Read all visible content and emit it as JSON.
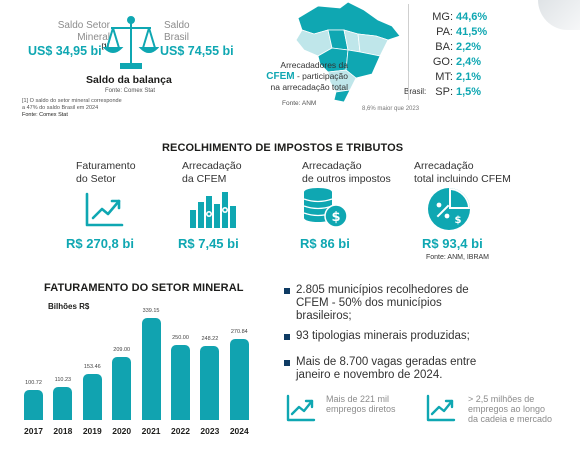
{
  "balance": {
    "left_label_1": "Saldo Setor",
    "left_label_2": "Mineral",
    "left_value": "US$ 34,95 bi",
    "left_note_mark": "[1]",
    "right_label_1": "Saldo",
    "right_label_2": "Brasil",
    "right_value": "US$ 74,55 bi",
    "title": "Saldo da balança",
    "source": "Fonte: Comex Stat",
    "footnote_1": "[1] O saldo do setor mineral corresponde",
    "footnote_2": "a 47% do saldo Brasil em 2024",
    "footnote_source": "Fonte: Comex Stat",
    "icon": "balance-scale-icon"
  },
  "cfem_map": {
    "caption_1": "Arrecadadores da",
    "caption_bold": "CFEM",
    "caption_2": " - participação",
    "caption_3": "na arrecadação total",
    "source": "Fonte: ANM",
    "brasil_label": "Brasil:",
    "brasil_note": "8,6% maior que 2023",
    "states": [
      {
        "uf": "MG:",
        "pct": "44,6%"
      },
      {
        "uf": "PA:",
        "pct": "41,5%"
      },
      {
        "uf": "BA:",
        "pct": "2,2%"
      },
      {
        "uf": "GO:",
        "pct": "2,4%"
      },
      {
        "uf": "MT:",
        "pct": "2,1%"
      },
      {
        "uf": "SP:",
        "pct": "1,5%"
      }
    ],
    "colors": {
      "accent": "#0fa7b2",
      "map_fill": "#bfe6ea",
      "map_dark": "#0fa7b2"
    }
  },
  "taxes": {
    "title": "RECOLHIMENTO DE IMPOSTOS E TRIBUTOS",
    "cards": [
      {
        "label_1": "Faturamento",
        "label_2": "do Setor",
        "value": "R$ 270,8 bi",
        "icon": "trend-up-chart-icon"
      },
      {
        "label_1": "Arrecadação",
        "label_2": "da CFEM",
        "value": "R$ 7,45 bi",
        "icon": "coin-bars-icon"
      },
      {
        "label_1": "Arrecadação",
        "label_2": "de outros impostos",
        "value": "R$ 86 bi",
        "icon": "coin-stack-icon"
      },
      {
        "label_1": "Arrecadação",
        "label_2": "total incluindo CFEM",
        "value": "R$ 93,4 bi",
        "icon": "pie-percent-icon"
      }
    ],
    "source": "Fonte: ANM, IBRAM"
  },
  "revenue_chart": {
    "title": "FATURAMENTO DO SETOR MINERAL",
    "unit": "Bilhões R$"
  },
  "chart_data": {
    "type": "bar",
    "title": "FATURAMENTO DO SETOR MINERAL",
    "ylabel": "Bilhões R$",
    "xlabel": "",
    "categories": [
      "2017",
      "2018",
      "2019",
      "2020",
      "2021",
      "2022",
      "2023",
      "2024"
    ],
    "values": [
      100.72,
      110.23,
      153.46,
      209.0,
      339.15,
      250.0,
      248.22,
      270.84
    ],
    "value_labels": [
      "100.72",
      "110.23",
      "153.46",
      "209.00",
      "339.15",
      "250.00",
      "248.22",
      "270.84"
    ],
    "ylim": [
      0,
      340
    ],
    "grid": false,
    "color": "#11a3b0"
  },
  "highlights": {
    "bullets": [
      {
        "line_1": "2.805 municípios recolhedores de",
        "line_2": "CFEM - 50% dos municípios",
        "line_3": "brasileiros;"
      },
      {
        "line_1": "93 tipologias minerais produzidas;",
        "line_2": "",
        "line_3": ""
      },
      {
        "line_1": "Mais de 8.700 vagas geradas entre",
        "line_2": "janeiro e novembro de 2024.",
        "line_3": ""
      }
    ],
    "jobs": [
      {
        "line_1": "Mais de 221 mil",
        "line_2": "empregos diretos",
        "line_3": "",
        "icon": "trend-up-chart-icon"
      },
      {
        "line_1": "> 2,5 milhões de",
        "line_2": "empregos ao longo",
        "line_3": "da cadeia e mercado",
        "icon": "trend-up-chart-icon"
      }
    ]
  }
}
